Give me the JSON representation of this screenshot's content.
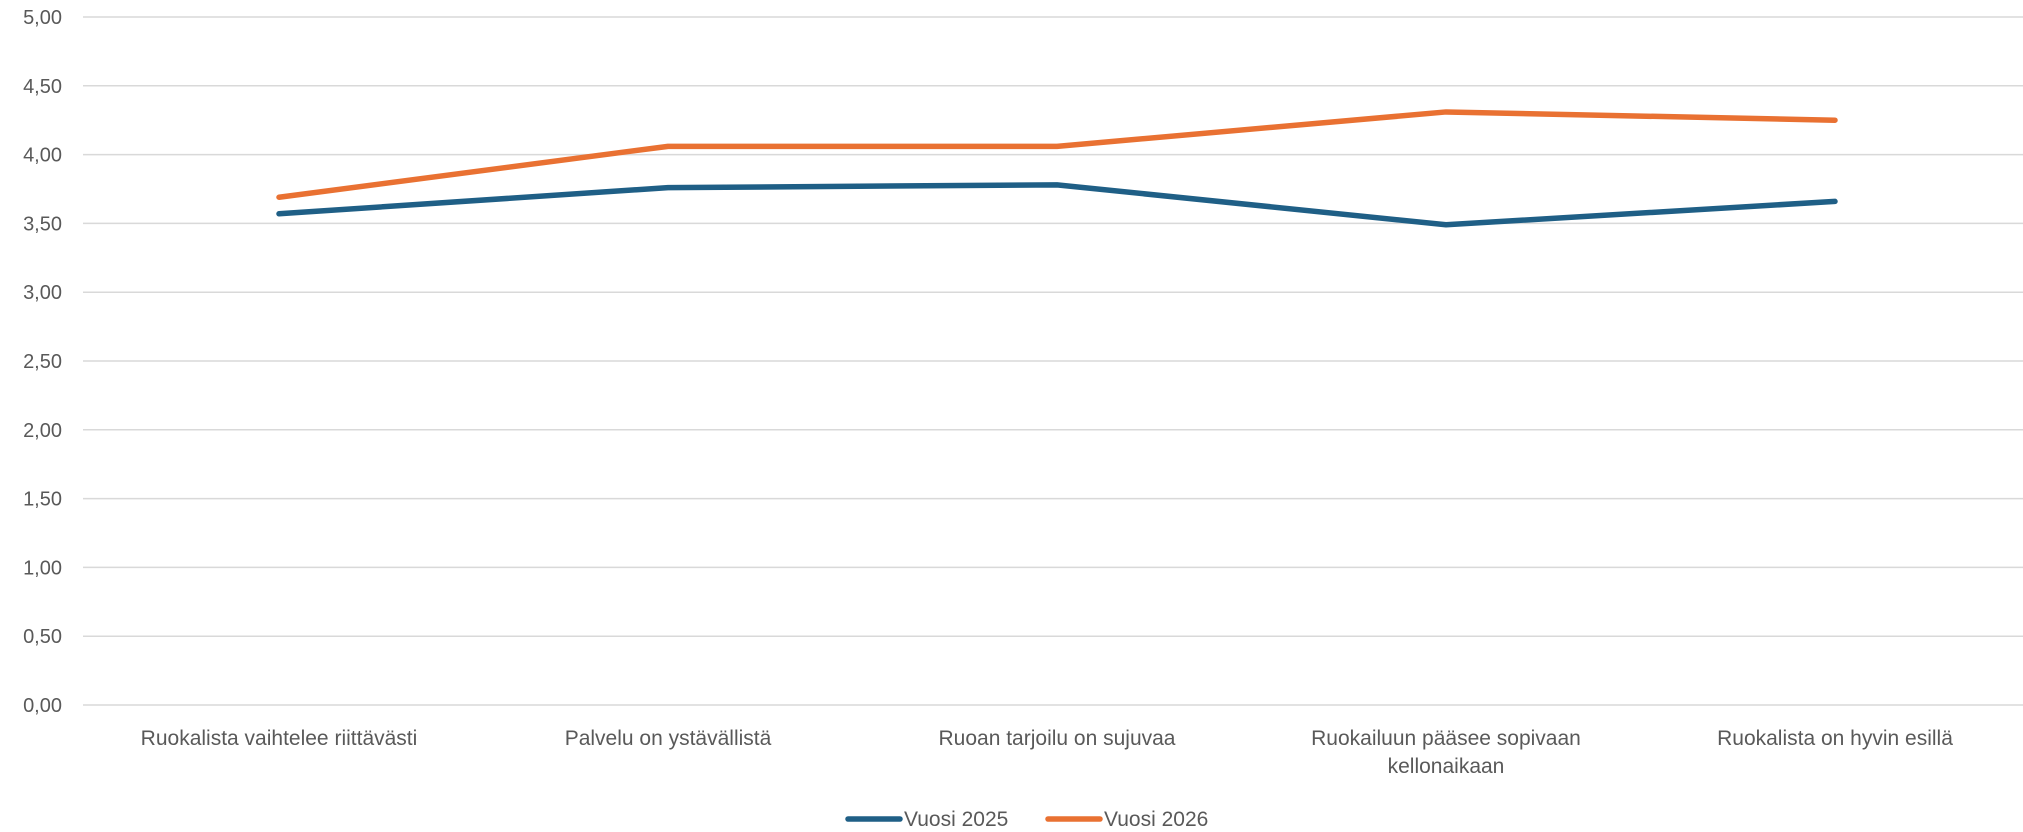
{
  "chart_data": {
    "type": "line",
    "title": "",
    "xlabel": "",
    "ylabel": "",
    "categories": [
      [
        "Ruokalista vaihtelee riittävästi"
      ],
      [
        "Palvelu on ystävällistä"
      ],
      [
        "Ruoan tarjoilu on sujuvaa"
      ],
      [
        "Ruokailuun pääsee sopivaan",
        "kellonaikaan"
      ],
      [
        "Ruokalista on hyvin esillä"
      ]
    ],
    "y_ticks": [
      "0,00",
      "0,50",
      "1,00",
      "1,50",
      "2,00",
      "2,50",
      "3,00",
      "3,50",
      "4,00",
      "4,50",
      "5,00"
    ],
    "ylim": [
      0,
      5
    ],
    "grid": true,
    "legend_position": "bottom",
    "series": [
      {
        "name": "Vuosi 2025",
        "color": "#1f5f86",
        "values": [
          3.57,
          3.76,
          3.78,
          3.49,
          3.66
        ]
      },
      {
        "name": "Vuosi 2026",
        "color": "#e97132",
        "values": [
          3.69,
          4.06,
          4.06,
          4.31,
          4.25
        ]
      }
    ]
  }
}
